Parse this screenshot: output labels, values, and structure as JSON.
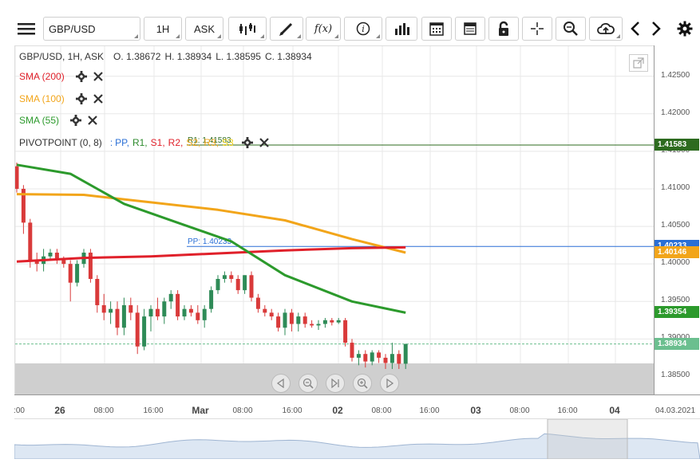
{
  "toolbar": {
    "symbol": "GBP/USD",
    "interval": "1H",
    "price_type": "ASK",
    "icons": [
      "menu-icon",
      "candle-type-icon",
      "draw-pen-icon",
      "function-icon",
      "info-icon",
      "bar-chart-icon",
      "calendar-icon",
      "sheet-icon",
      "lock-icon",
      "crosshair-icon",
      "zoom-icon",
      "cloud-upload-icon",
      "prev-icon",
      "next-icon",
      "gear-icon"
    ],
    "fx_label": "f(x)"
  },
  "ohlc": {
    "line": "GBP/USD, 1H, ASK",
    "open_label": "O.",
    "open": "1.38672",
    "high_label": "H.",
    "high": "1.38934",
    "low_label": "L.",
    "low": "1.38595",
    "close_label": "C.",
    "close": "1.38934"
  },
  "indicators": [
    {
      "label": "SMA (200)",
      "color": "#e0202a"
    },
    {
      "label": "SMA (100)",
      "color": "#f2a51a"
    },
    {
      "label": "SMA (55)",
      "color": "#2c9a2c"
    }
  ],
  "pivot": {
    "label": "PIVOTPOINT (0, 8)",
    "sep": ":",
    "items": [
      {
        "t": "PP,",
        "c": "#2a6fd6"
      },
      {
        "t": "R1,",
        "c": "#2c8a2c"
      },
      {
        "t": "S1,",
        "c": "#e0202a"
      },
      {
        "t": "R2,",
        "c": "#e0202a"
      },
      {
        "t": "S2,",
        "c": "#f2a51a"
      },
      {
        "t": "R3,",
        "c": "#f2a51a"
      },
      {
        "t": "S3",
        "c": "#f2d21a"
      }
    ],
    "r1_label": "R1: 1.41583",
    "pp_label": "PP: 1.40233"
  },
  "yaxis": {
    "ticks": [
      "1.42500",
      "1.42000",
      "1.41500",
      "1.41000",
      "1.40500",
      "1.40000",
      "1.39500",
      "1.39000",
      "1.38500"
    ],
    "badges": [
      {
        "v": "1.41583",
        "c": "#2d6b1f"
      },
      {
        "v": "1.40233",
        "c": "#2a6fd6"
      },
      {
        "v": "1.40146",
        "c": "#f2a51a"
      },
      {
        "v": "1.39354",
        "c": "#2c9a2c"
      },
      {
        "v": "1.38934",
        "c": "#6bbf8f"
      }
    ]
  },
  "xaxis": {
    "labels": [
      {
        "t": ":00",
        "big": false
      },
      {
        "t": "26",
        "big": true
      },
      {
        "t": "08:00",
        "big": false
      },
      {
        "t": "16:00",
        "big": false
      },
      {
        "t": "Mar",
        "big": true
      },
      {
        "t": "08:00",
        "big": false
      },
      {
        "t": "16:00",
        "big": false
      },
      {
        "t": "02",
        "big": true
      },
      {
        "t": "08:00",
        "big": false
      },
      {
        "t": "16:00",
        "big": false
      },
      {
        "t": "03",
        "big": true
      },
      {
        "t": "08:00",
        "big": false
      },
      {
        "t": "16:00",
        "big": false
      },
      {
        "t": "04",
        "big": true
      }
    ],
    "date": "04.03.2021"
  },
  "colors": {
    "up": "#2e8b57",
    "down": "#d93a3a",
    "grid": "#e8e8e8"
  },
  "chart_data": {
    "type": "candlestick",
    "ylim": [
      1.3825,
      1.429
    ],
    "candles": [
      [
        1.413,
        1.4135,
        1.4095,
        1.41
      ],
      [
        1.41,
        1.4105,
        1.404,
        1.4055
      ],
      [
        1.4055,
        1.406,
        1.3995,
        1.4005
      ],
      [
        1.4005,
        1.4015,
        1.399,
        1.4
      ],
      [
        1.4,
        1.402,
        1.399,
        1.401
      ],
      [
        1.401,
        1.402,
        1.4005,
        1.4015
      ],
      [
        1.4015,
        1.402,
        1.4,
        1.4005
      ],
      [
        1.4005,
        1.401,
        1.3995,
        1.4
      ],
      [
        1.4,
        1.4005,
        1.395,
        1.3975
      ],
      [
        1.3975,
        1.4005,
        1.397,
        1.4
      ],
      [
        1.4,
        1.402,
        1.3995,
        1.4015
      ],
      [
        1.4015,
        1.402,
        1.3975,
        1.398
      ],
      [
        1.398,
        1.3985,
        1.3935,
        1.3945
      ],
      [
        1.3945,
        1.396,
        1.3925,
        1.3935
      ],
      [
        1.3935,
        1.395,
        1.392,
        1.394
      ],
      [
        1.394,
        1.395,
        1.3905,
        1.3915
      ],
      [
        1.3915,
        1.3955,
        1.3905,
        1.3945
      ],
      [
        1.3945,
        1.3955,
        1.3925,
        1.3935
      ],
      [
        1.3935,
        1.3945,
        1.388,
        1.389
      ],
      [
        1.389,
        1.394,
        1.3885,
        1.393
      ],
      [
        1.393,
        1.3945,
        1.391,
        1.394
      ],
      [
        1.394,
        1.3955,
        1.3925,
        1.393
      ],
      [
        1.393,
        1.3955,
        1.392,
        1.395
      ],
      [
        1.395,
        1.3965,
        1.394,
        1.396
      ],
      [
        1.396,
        1.3965,
        1.3925,
        1.393
      ],
      [
        1.393,
        1.3945,
        1.3925,
        1.394
      ],
      [
        1.394,
        1.3945,
        1.393,
        1.3935
      ],
      [
        1.3935,
        1.3945,
        1.392,
        1.3925
      ],
      [
        1.3925,
        1.3945,
        1.3915,
        1.394
      ],
      [
        1.394,
        1.397,
        1.3935,
        1.3965
      ],
      [
        1.3965,
        1.3985,
        1.396,
        1.398
      ],
      [
        1.398,
        1.399,
        1.3975,
        1.3985
      ],
      [
        1.3985,
        1.399,
        1.3975,
        1.398
      ],
      [
        1.398,
        1.3985,
        1.396,
        1.3965
      ],
      [
        1.3965,
        1.3985,
        1.396,
        1.3985
      ],
      [
        1.3985,
        1.399,
        1.395,
        1.3955
      ],
      [
        1.3955,
        1.396,
        1.3935,
        1.394
      ],
      [
        1.394,
        1.3945,
        1.393,
        1.3935
      ],
      [
        1.3935,
        1.394,
        1.3925,
        1.393
      ],
      [
        1.393,
        1.3935,
        1.391,
        1.3915
      ],
      [
        1.3915,
        1.394,
        1.3905,
        1.3935
      ],
      [
        1.3935,
        1.394,
        1.391,
        1.392
      ],
      [
        1.392,
        1.3935,
        1.391,
        1.393
      ],
      [
        1.393,
        1.3935,
        1.3915,
        1.392
      ],
      [
        1.392,
        1.3925,
        1.3915,
        1.3918
      ],
      [
        1.3918,
        1.3925,
        1.3912,
        1.392
      ],
      [
        1.392,
        1.3928,
        1.3915,
        1.3925
      ],
      [
        1.3925,
        1.3928,
        1.3918,
        1.3922
      ],
      [
        1.3922,
        1.3928,
        1.392,
        1.3925
      ],
      [
        1.3925,
        1.3928,
        1.389,
        1.3895
      ],
      [
        1.3895,
        1.39,
        1.387,
        1.3875
      ],
      [
        1.3875,
        1.3885,
        1.3865,
        1.388
      ],
      [
        1.388,
        1.3885,
        1.3862,
        1.387
      ],
      [
        1.387,
        1.3885,
        1.3865,
        1.3882
      ],
      [
        1.3882,
        1.3885,
        1.3868,
        1.3875
      ],
      [
        1.3875,
        1.388,
        1.386,
        1.3868
      ],
      [
        1.3868,
        1.3895,
        1.386,
        1.388
      ],
      [
        1.388,
        1.3885,
        1.386,
        1.3867
      ],
      [
        1.3867,
        1.3894,
        1.386,
        1.3893
      ]
    ],
    "sma200": [
      [
        0,
        1.4003
      ],
      [
        10,
        1.4008
      ],
      [
        20,
        1.401
      ],
      [
        30,
        1.4014
      ],
      [
        40,
        1.4018
      ],
      [
        50,
        1.4021
      ],
      [
        58,
        1.4022
      ]
    ],
    "sma100": [
      [
        0,
        1.4093
      ],
      [
        10,
        1.4092
      ],
      [
        20,
        1.4082
      ],
      [
        30,
        1.4072
      ],
      [
        40,
        1.4058
      ],
      [
        50,
        1.4033
      ],
      [
        58,
        1.4015
      ]
    ],
    "sma55": [
      [
        0,
        1.4132
      ],
      [
        8,
        1.412
      ],
      [
        16,
        1.408
      ],
      [
        24,
        1.4055
      ],
      [
        32,
        1.403
      ],
      [
        40,
        1.3985
      ],
      [
        50,
        1.395
      ],
      [
        58,
        1.3935
      ]
    ],
    "r1": 1.41583,
    "pp": 1.40233,
    "last": 1.38934
  }
}
